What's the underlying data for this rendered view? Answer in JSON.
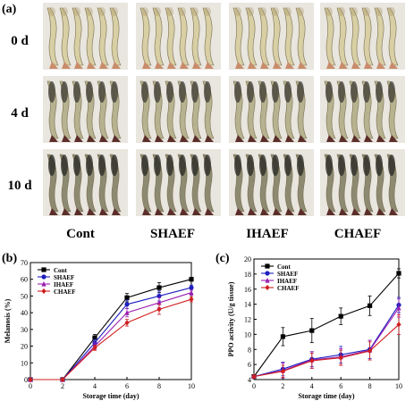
{
  "figure": {
    "panel_a_label": "(a)",
    "panel_b_label": "(b)",
    "panel_c_label": "(c)",
    "rows": [
      "0 d",
      "4 d",
      "10 d"
    ],
    "columns": [
      "Cont",
      "SHAEF",
      "IHAEF",
      "CHAEF"
    ],
    "photo_tint": {
      "0 d": "#d8cfa4",
      "4 d": "#b7b28f",
      "10 d": "#8d8a72"
    }
  },
  "chart_data": [
    {
      "type": "line",
      "panel": "(b)",
      "xlabel": "Storage time (day)",
      "ylabel": "Melanosis (%)",
      "xlim": [
        0,
        10
      ],
      "ylim": [
        0,
        70
      ],
      "xticks": [
        0,
        2,
        4,
        6,
        8,
        10
      ],
      "yticks": [
        0,
        10,
        20,
        30,
        40,
        50,
        60,
        70
      ],
      "legend": "top-left",
      "x": [
        0,
        2,
        4,
        6,
        8,
        10
      ],
      "series": [
        {
          "name": "Cont",
          "color": "#000000",
          "marker": "square",
          "values": [
            0,
            0,
            25,
            49,
            55,
            60
          ],
          "err": [
            0,
            0.5,
            2,
            2.5,
            3,
            1
          ]
        },
        {
          "name": "SHAEF",
          "color": "#1f1fbf",
          "marker": "circle",
          "values": [
            0,
            0,
            22,
            45,
            50,
            55
          ],
          "err": [
            0,
            0.5,
            2,
            2.5,
            3,
            1.5
          ]
        },
        {
          "name": "IHAEF",
          "color": "#9b1fb0",
          "marker": "triangle",
          "values": [
            0,
            0,
            20,
            40,
            46,
            52
          ],
          "err": [
            0,
            0.5,
            2,
            2.5,
            3,
            1.5
          ]
        },
        {
          "name": "CHAEF",
          "color": "#d01f1f",
          "marker": "diamond",
          "values": [
            0,
            0,
            19,
            34,
            42,
            48
          ],
          "err": [
            0,
            0.5,
            1.5,
            2,
            3,
            1.5
          ]
        }
      ]
    },
    {
      "type": "line",
      "panel": "(c)",
      "xlabel": "Storage time (day)",
      "ylabel": "PPO activity (U/g tissue)",
      "xlim": [
        0,
        10
      ],
      "ylim": [
        4,
        20
      ],
      "xticks": [
        0,
        2,
        4,
        6,
        8,
        10
      ],
      "yticks": [
        4,
        6,
        8,
        10,
        12,
        14,
        16,
        18,
        20
      ],
      "legend": "top-left",
      "x": [
        0,
        2,
        4,
        6,
        8,
        10
      ],
      "series": [
        {
          "name": "Cont",
          "color": "#000000",
          "marker": "square",
          "values": [
            4.4,
            9.7,
            10.5,
            12.4,
            13.8,
            18.1
          ],
          "err": [
            0.2,
            1.2,
            1.6,
            1.1,
            1.3,
            0.6
          ]
        },
        {
          "name": "SHAEF",
          "color": "#1f1fbf",
          "marker": "circle",
          "values": [
            4.4,
            5.4,
            6.7,
            7.3,
            8.0,
            13.9
          ],
          "err": [
            0.2,
            0.9,
            1.0,
            1.1,
            1.2,
            1.0
          ]
        },
        {
          "name": "IHAEF",
          "color": "#9b1fb0",
          "marker": "triangle",
          "values": [
            4.4,
            5.2,
            6.6,
            7.0,
            7.9,
            13.5
          ],
          "err": [
            0.2,
            1.0,
            1.1,
            1.1,
            1.3,
            1.2
          ]
        },
        {
          "name": "CHAEF",
          "color": "#d01f1f",
          "marker": "diamond",
          "values": [
            4.4,
            5.1,
            6.5,
            6.9,
            7.8,
            11.3
          ],
          "err": [
            0.2,
            0.8,
            1.0,
            1.0,
            1.2,
            1.3
          ]
        }
      ]
    }
  ]
}
